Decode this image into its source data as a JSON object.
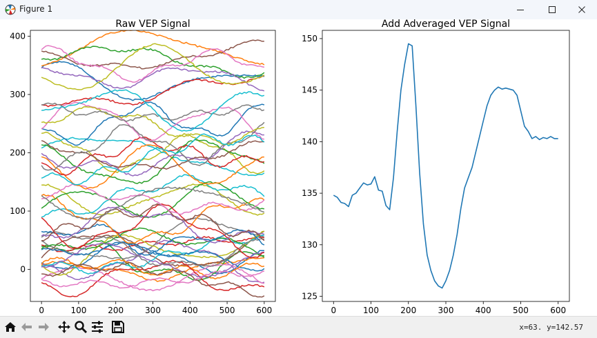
{
  "window": {
    "title": "Figure 1"
  },
  "toolbar": {
    "coords": "x=63.  y=142.57",
    "buttons": [
      "home-icon",
      "back-icon",
      "forward-icon",
      "pan-icon",
      "zoom-icon",
      "configure-subplots-icon",
      "save-icon"
    ]
  },
  "chart_data": [
    {
      "type": "line",
      "title": "Raw VEP Signal",
      "xlabel": "",
      "ylabel": "",
      "xlim": [
        -30,
        630
      ],
      "ylim": [
        -55,
        410
      ],
      "xticks": [
        0,
        100,
        200,
        300,
        400,
        500,
        600
      ],
      "yticks": [
        0,
        100,
        200,
        300,
        400
      ],
      "trial_count": 50,
      "x_points": 601,
      "note_series": "50 overlapping noisy trial traces, starting values spread between about -35 and 390"
    },
    {
      "type": "line",
      "title": "Add Adveraged VEP Signal",
      "xlabel": "",
      "ylabel": "",
      "xlim": [
        -30,
        630
      ],
      "ylim": [
        124.5,
        150.8
      ],
      "xticks": [
        0,
        100,
        200,
        300,
        400,
        500,
        600
      ],
      "yticks": [
        125,
        130,
        135,
        140,
        145,
        150
      ],
      "series": [
        {
          "color": "#1f77b4",
          "x": [
            0,
            10,
            20,
            30,
            40,
            50,
            60,
            70,
            80,
            90,
            100,
            110,
            120,
            130,
            140,
            150,
            160,
            170,
            180,
            190,
            200,
            210,
            220,
            230,
            240,
            250,
            260,
            270,
            280,
            290,
            300,
            310,
            320,
            330,
            340,
            350,
            360,
            370,
            380,
            390,
            400,
            410,
            420,
            430,
            440,
            450,
            460,
            470,
            480,
            490,
            500,
            510,
            520,
            530,
            540,
            550,
            560,
            570,
            580,
            590,
            600
          ],
          "y": [
            134.8,
            134.6,
            134.1,
            134.0,
            133.7,
            134.8,
            135.0,
            135.5,
            136.0,
            135.8,
            135.9,
            136.6,
            135.3,
            135.2,
            133.8,
            133.4,
            136.5,
            141.0,
            145.0,
            147.5,
            149.5,
            149.3,
            143.5,
            137.0,
            132.0,
            129.0,
            127.5,
            126.5,
            126.0,
            125.8,
            126.5,
            127.5,
            129.0,
            131.0,
            133.5,
            135.5,
            136.5,
            137.5,
            139.0,
            140.5,
            142.0,
            143.5,
            144.5,
            145.0,
            145.3,
            145.1,
            145.2,
            145.1,
            145.0,
            144.5,
            143.0,
            141.5,
            141.0,
            140.3,
            140.5,
            140.2,
            140.4,
            140.3,
            140.5,
            140.3,
            140.3
          ]
        }
      ]
    }
  ]
}
